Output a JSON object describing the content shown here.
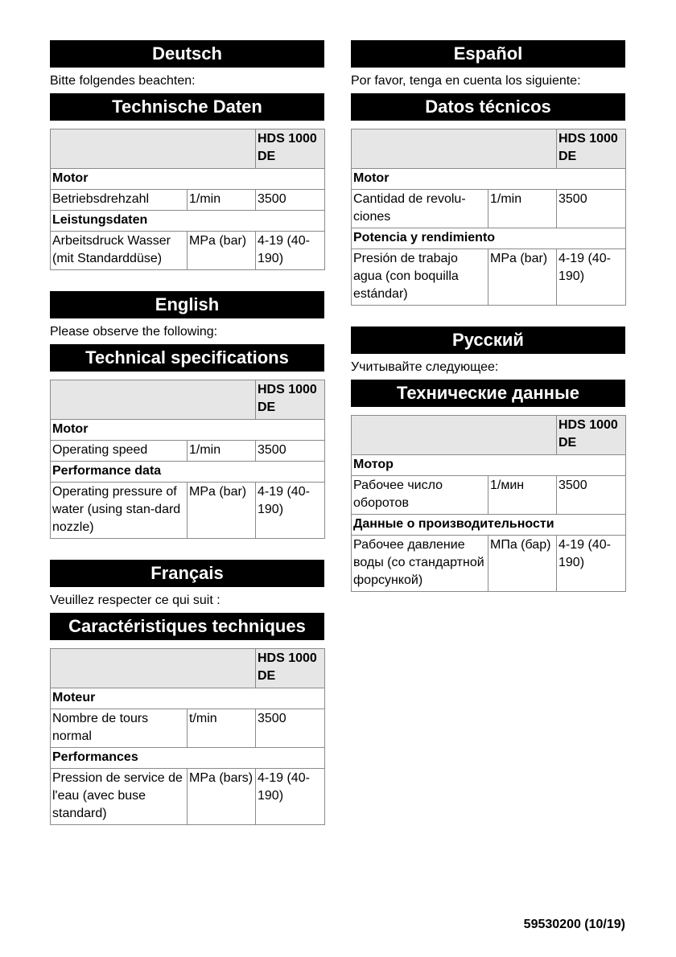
{
  "columns": [
    [
      {
        "language": "Deutsch",
        "note": "Bitte folgendes beachten:",
        "title": "Technische Daten",
        "model": "HDS 1000 DE",
        "rows": [
          {
            "group": "Motor"
          },
          {
            "label": "Betriebsdrehzahl",
            "unit": "1/min",
            "value": "3500"
          },
          {
            "group": "Leistungsdaten"
          },
          {
            "label": "Arbeitsdruck Wasser (mit Standarddüse)",
            "unit": "MPa (bar)",
            "value": "4-19 (40-190)"
          }
        ]
      },
      {
        "language": "English",
        "note": "Please observe the following:",
        "title": "Technical specifications",
        "model": "HDS 1000 DE",
        "rows": [
          {
            "group": "Motor"
          },
          {
            "label": "Operating speed",
            "unit": "1/min",
            "value": "3500"
          },
          {
            "group": "Performance data"
          },
          {
            "label": "Operating pressure of water (using stan-dard nozzle)",
            "unit": "MPa (bar)",
            "value": "4-19 (40-190)"
          }
        ]
      },
      {
        "language": "Français",
        "note": "Veuillez respecter ce qui suit :",
        "title": "Caractéristiques techniques",
        "model": "HDS 1000 DE",
        "rows": [
          {
            "group": "Moteur"
          },
          {
            "label": "Nombre de tours normal",
            "unit": "t/min",
            "value": "3500"
          },
          {
            "group": "Performances"
          },
          {
            "label": "Pression de service de l'eau (avec buse standard)",
            "unit": "MPa (bars)",
            "value": "4-19 (40-190)"
          }
        ]
      }
    ],
    [
      {
        "language": "Español",
        "note": "Por favor, tenga en cuenta los siguiente:",
        "title": "Datos técnicos",
        "model": "HDS 1000 DE",
        "rows": [
          {
            "group": "Motor"
          },
          {
            "label": "Cantidad de revolu-ciones",
            "unit": "1/min",
            "value": "3500"
          },
          {
            "group": "Potencia y rendimiento"
          },
          {
            "label": "Presión de trabajo agua (con boquilla estándar)",
            "unit": "MPa (bar)",
            "value": "4-19 (40-190)"
          }
        ]
      },
      {
        "language": "Русский",
        "note": "Учитывайте следующее:",
        "title": "Технические данные",
        "model": "HDS 1000 DE",
        "rows": [
          {
            "group": "Мотор"
          },
          {
            "label": "Рабочее число оборотов",
            "unit": "1/мин",
            "value": "3500"
          },
          {
            "group": "Данные о производительности"
          },
          {
            "label": "Рабочее давление воды (со стандартной форсункой)",
            "unit": "МПа (бар)",
            "value": "4-19 (40-190)"
          }
        ]
      }
    ]
  ],
  "footer": "59530200 (10/19)"
}
